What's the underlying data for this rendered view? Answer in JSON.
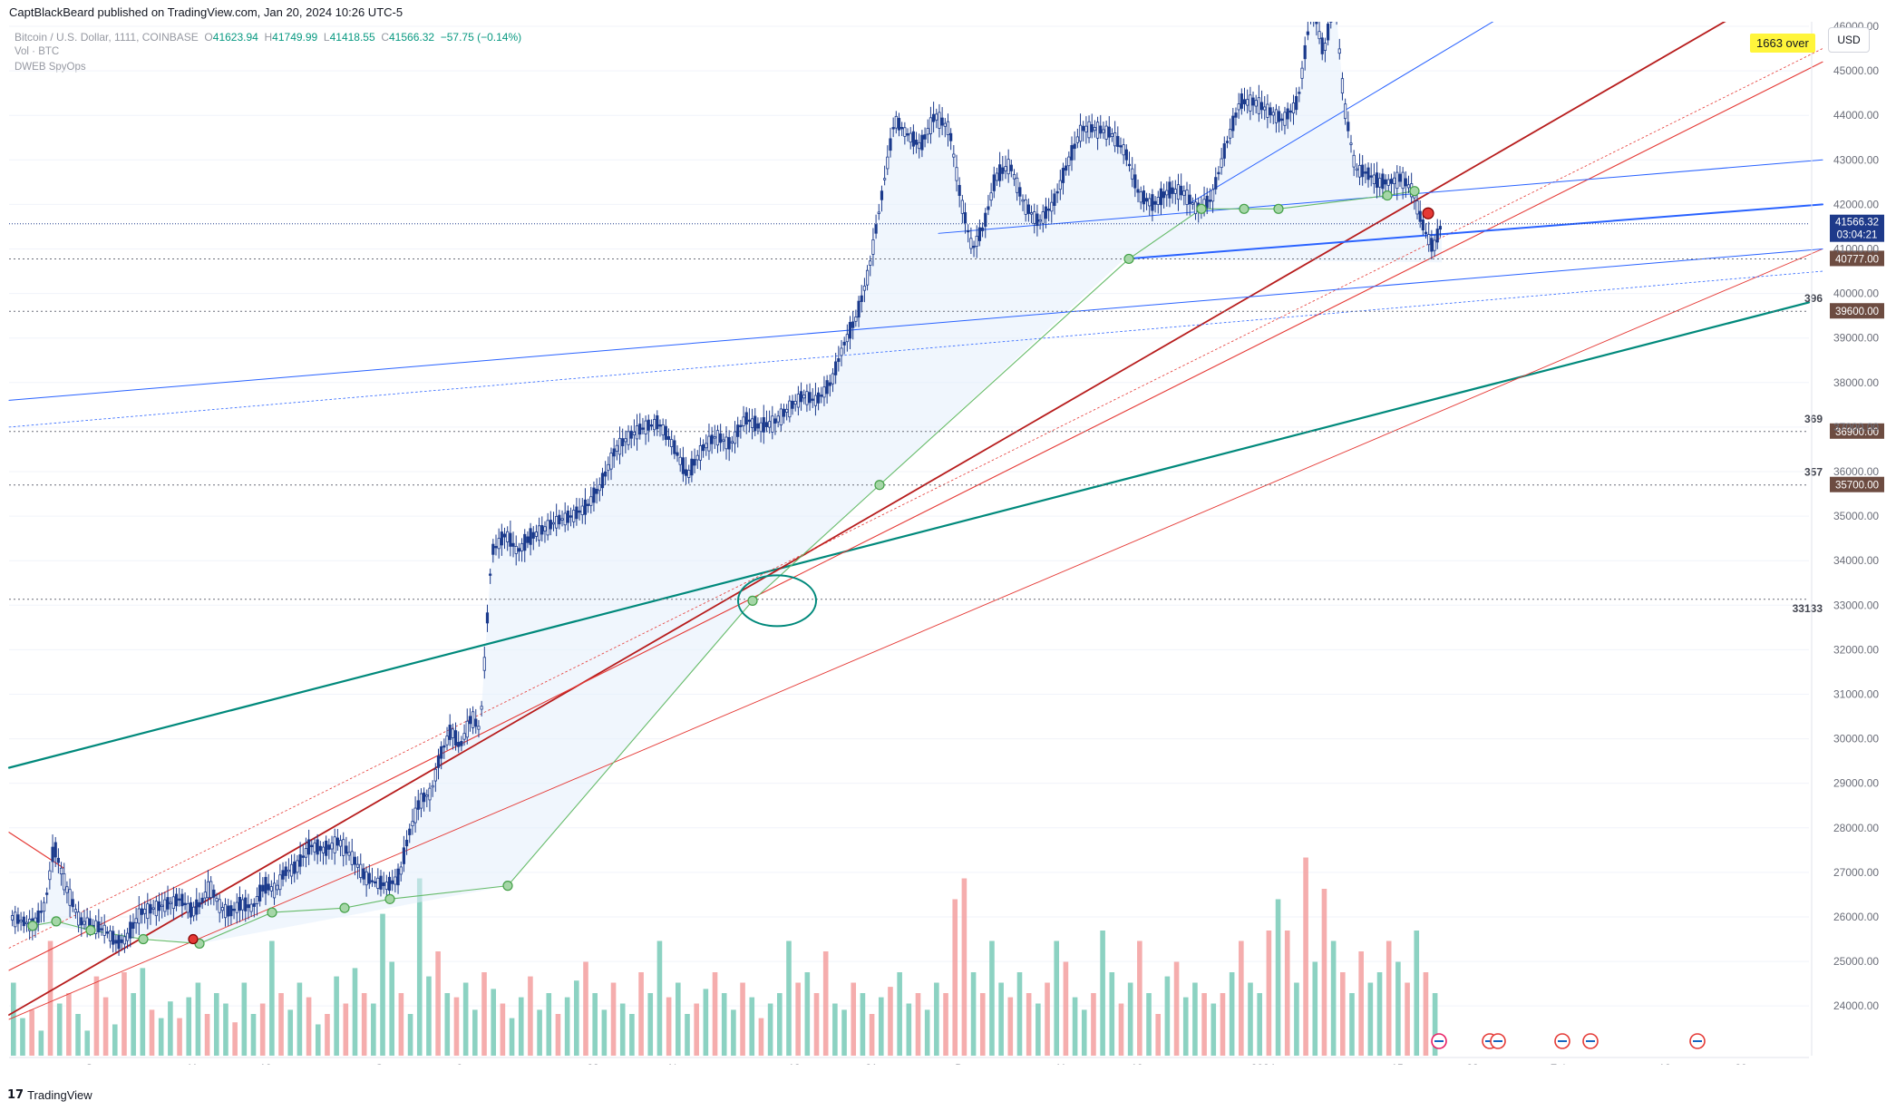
{
  "header": {
    "published": "CaptBlackBeard published on TradingView.com, Jan 20, 2024 10:26 UTC-5"
  },
  "symbol": {
    "name": "Bitcoin / U.S. Dollar, 1111, COINBASE",
    "open_label": "O",
    "open": "41623.94",
    "high_label": "H",
    "high": "41749.99",
    "low_label": "L",
    "low": "41418.55",
    "close_label": "C",
    "close": "41566.32",
    "change": "−57.75 (−0.14%)"
  },
  "indicators": {
    "volume": "Vol · BTC",
    "custom": "DWEB SpyOps"
  },
  "currency": "USD",
  "badge_over": "1663 over",
  "footer": {
    "logo_glyph": "17",
    "brand": "TradingView"
  },
  "colors": {
    "up": "#26a69a",
    "down": "#ef5350",
    "bar_up": "#1b3a8c",
    "teal_line": "#00897b",
    "dark_red": "#b71c1c",
    "red": "#e53935",
    "blue": "#2962ff",
    "green": "#66bb6a",
    "price_tag": "#1e3a8a",
    "level_tag": "#6d4c41"
  },
  "chart_data": {
    "type": "line",
    "price_axis": {
      "ticks": [
        24000,
        25000,
        26000,
        27000,
        28000,
        29000,
        30000,
        31000,
        32000,
        33000,
        34000,
        35000,
        36000,
        37000,
        38000,
        39000,
        40000,
        41000,
        42000,
        43000,
        44000,
        45000,
        46000
      ],
      "tick_labels": [
        "24000.00",
        "25000.00",
        "26000.00",
        "27000.00",
        "28000.00",
        "29000.00",
        "30000.00",
        "31000.00",
        "32000.00",
        "33000.00",
        "34000.00",
        "35000.00",
        "36000.00",
        "37000.00",
        "38000.00",
        "39000.00",
        "40000.00",
        "41000.00",
        "42000.00",
        "43000.00",
        "44000.00",
        "45000.00",
        "46000.00"
      ],
      "ylim": [
        23500,
        46900
      ]
    },
    "time_axis": {
      "labels": [
        "Sep",
        "11",
        "19",
        "Oct",
        "9",
        "23",
        "Nov",
        "13",
        "21",
        "Dec",
        "11",
        "19",
        "2024",
        "15",
        "23",
        "Feb",
        "12",
        "20"
      ]
    },
    "current_price": {
      "value": 41566.32,
      "label": "41566.32",
      "countdown": "03:04:21"
    },
    "levels": [
      {
        "value": 40777,
        "label": "40777.00",
        "note": ""
      },
      {
        "value": 39600,
        "label": "39600.00",
        "note": "396"
      },
      {
        "value": 36900,
        "label": "36900.00",
        "note": "369"
      },
      {
        "value": 35700,
        "label": "35700.00",
        "note": "357"
      },
      {
        "value": 33133,
        "label": "",
        "note": "33133"
      }
    ],
    "price_path": [
      [
        0,
        26000
      ],
      [
        8,
        25900
      ],
      [
        16,
        25800
      ],
      [
        24,
        26300
      ],
      [
        30,
        27600
      ],
      [
        38,
        26700
      ],
      [
        48,
        25900
      ],
      [
        58,
        25800
      ],
      [
        66,
        25700
      ],
      [
        74,
        25400
      ],
      [
        80,
        25500
      ],
      [
        90,
        26100
      ],
      [
        100,
        26200
      ],
      [
        110,
        26300
      ],
      [
        118,
        26400
      ],
      [
        126,
        26100
      ],
      [
        132,
        26300
      ],
      [
        138,
        26700
      ],
      [
        146,
        26200
      ],
      [
        152,
        26100
      ],
      [
        160,
        26300
      ],
      [
        168,
        26200
      ],
      [
        176,
        26700
      ],
      [
        184,
        26600
      ],
      [
        190,
        27000
      ],
      [
        198,
        27100
      ],
      [
        208,
        27600
      ],
      [
        218,
        27500
      ],
      [
        228,
        27700
      ],
      [
        238,
        27300
      ],
      [
        246,
        26900
      ],
      [
        252,
        26800
      ],
      [
        262,
        26700
      ],
      [
        270,
        26900
      ],
      [
        276,
        27800
      ],
      [
        284,
        28600
      ],
      [
        292,
        28800
      ],
      [
        298,
        29600
      ],
      [
        306,
        30200
      ],
      [
        312,
        29800
      ],
      [
        320,
        30500
      ],
      [
        326,
        30200
      ],
      [
        334,
        34200
      ],
      [
        344,
        34600
      ],
      [
        352,
        34200
      ],
      [
        360,
        34500
      ],
      [
        370,
        34700
      ],
      [
        380,
        34900
      ],
      [
        390,
        35000
      ],
      [
        400,
        35200
      ],
      [
        410,
        35700
      ],
      [
        420,
        36500
      ],
      [
        430,
        36800
      ],
      [
        440,
        37000
      ],
      [
        450,
        37100
      ],
      [
        460,
        36600
      ],
      [
        470,
        35900
      ],
      [
        480,
        36500
      ],
      [
        490,
        36800
      ],
      [
        500,
        36600
      ],
      [
        510,
        37200
      ],
      [
        520,
        37000
      ],
      [
        530,
        37100
      ],
      [
        540,
        37400
      ],
      [
        550,
        37700
      ],
      [
        560,
        37600
      ],
      [
        570,
        38000
      ],
      [
        578,
        38800
      ],
      [
        588,
        39500
      ],
      [
        596,
        40500
      ],
      [
        604,
        42000
      ],
      [
        614,
        43900
      ],
      [
        622,
        43600
      ],
      [
        632,
        43300
      ],
      [
        642,
        44000
      ],
      [
        652,
        43700
      ],
      [
        660,
        42100
      ],
      [
        668,
        41000
      ],
      [
        676,
        41500
      ],
      [
        684,
        42600
      ],
      [
        694,
        42900
      ],
      [
        704,
        42000
      ],
      [
        714,
        41600
      ],
      [
        724,
        42000
      ],
      [
        734,
        42900
      ],
      [
        744,
        43700
      ],
      [
        754,
        43700
      ],
      [
        764,
        43600
      ],
      [
        774,
        43200
      ],
      [
        784,
        42200
      ],
      [
        794,
        42000
      ],
      [
        804,
        42300
      ],
      [
        814,
        42300
      ],
      [
        824,
        41900
      ],
      [
        834,
        42100
      ],
      [
        844,
        43300
      ],
      [
        854,
        44300
      ],
      [
        864,
        44300
      ],
      [
        874,
        44100
      ],
      [
        884,
        43900
      ],
      [
        894,
        44300
      ],
      [
        904,
        46500
      ],
      [
        912,
        45400
      ],
      [
        920,
        46600
      ],
      [
        926,
        44300
      ],
      [
        934,
        42800
      ],
      [
        942,
        42700
      ],
      [
        950,
        42500
      ],
      [
        958,
        42500
      ],
      [
        966,
        42600
      ],
      [
        974,
        42300
      ],
      [
        980,
        41600
      ],
      [
        988,
        41000
      ],
      [
        994,
        41566
      ]
    ],
    "volume": {
      "note": "relative bar heights 0-1, color up/down",
      "bars": [
        [
          0.35,
          "u"
        ],
        [
          0.18,
          "u"
        ],
        [
          0.22,
          "d"
        ],
        [
          0.12,
          "u"
        ],
        [
          0.55,
          "d"
        ],
        [
          0.25,
          "u"
        ],
        [
          0.3,
          "d"
        ],
        [
          0.2,
          "u"
        ],
        [
          0.12,
          "u"
        ],
        [
          0.38,
          "d"
        ],
        [
          0.28,
          "d"
        ],
        [
          0.15,
          "u"
        ],
        [
          0.4,
          "d"
        ],
        [
          0.3,
          "u"
        ],
        [
          0.42,
          "u"
        ],
        [
          0.22,
          "d"
        ],
        [
          0.18,
          "u"
        ],
        [
          0.26,
          "u"
        ],
        [
          0.18,
          "d"
        ],
        [
          0.28,
          "u"
        ],
        [
          0.35,
          "u"
        ],
        [
          0.2,
          "d"
        ],
        [
          0.3,
          "u"
        ],
        [
          0.25,
          "u"
        ],
        [
          0.16,
          "d"
        ],
        [
          0.35,
          "u"
        ],
        [
          0.2,
          "u"
        ],
        [
          0.25,
          "d"
        ],
        [
          0.55,
          "u"
        ],
        [
          0.3,
          "d"
        ],
        [
          0.22,
          "u"
        ],
        [
          0.35,
          "u"
        ],
        [
          0.28,
          "d"
        ],
        [
          0.15,
          "u"
        ],
        [
          0.2,
          "d"
        ],
        [
          0.38,
          "u"
        ],
        [
          0.25,
          "d"
        ],
        [
          0.42,
          "u"
        ],
        [
          0.3,
          "d"
        ],
        [
          0.25,
          "u"
        ],
        [
          0.68,
          "u"
        ],
        [
          0.45,
          "u"
        ],
        [
          0.3,
          "d"
        ],
        [
          0.2,
          "u"
        ],
        [
          0.85,
          "u"
        ],
        [
          0.38,
          "u"
        ],
        [
          0.5,
          "d"
        ],
        [
          0.3,
          "u"
        ],
        [
          0.28,
          "d"
        ],
        [
          0.35,
          "u"
        ],
        [
          0.22,
          "u"
        ],
        [
          0.4,
          "d"
        ],
        [
          0.32,
          "u"
        ],
        [
          0.25,
          "d"
        ],
        [
          0.18,
          "u"
        ],
        [
          0.28,
          "u"
        ],
        [
          0.38,
          "d"
        ],
        [
          0.22,
          "u"
        ],
        [
          0.3,
          "u"
        ],
        [
          0.2,
          "d"
        ],
        [
          0.28,
          "u"
        ],
        [
          0.36,
          "u"
        ],
        [
          0.45,
          "d"
        ],
        [
          0.3,
          "u"
        ],
        [
          0.22,
          "u"
        ],
        [
          0.35,
          "d"
        ],
        [
          0.25,
          "u"
        ],
        [
          0.2,
          "u"
        ],
        [
          0.4,
          "d"
        ],
        [
          0.3,
          "u"
        ],
        [
          0.55,
          "u"
        ],
        [
          0.28,
          "d"
        ],
        [
          0.35,
          "u"
        ],
        [
          0.2,
          "u"
        ],
        [
          0.25,
          "d"
        ],
        [
          0.32,
          "u"
        ],
        [
          0.4,
          "d"
        ],
        [
          0.3,
          "u"
        ],
        [
          0.22,
          "u"
        ],
        [
          0.35,
          "d"
        ],
        [
          0.28,
          "u"
        ],
        [
          0.18,
          "d"
        ],
        [
          0.25,
          "u"
        ],
        [
          0.3,
          "u"
        ],
        [
          0.55,
          "u"
        ],
        [
          0.35,
          "d"
        ],
        [
          0.4,
          "u"
        ],
        [
          0.3,
          "d"
        ],
        [
          0.5,
          "d"
        ],
        [
          0.25,
          "u"
        ],
        [
          0.22,
          "u"
        ],
        [
          0.35,
          "d"
        ],
        [
          0.3,
          "u"
        ],
        [
          0.2,
          "d"
        ],
        [
          0.28,
          "u"
        ],
        [
          0.33,
          "d"
        ],
        [
          0.4,
          "u"
        ],
        [
          0.25,
          "u"
        ],
        [
          0.3,
          "d"
        ],
        [
          0.22,
          "u"
        ],
        [
          0.35,
          "u"
        ],
        [
          0.3,
          "d"
        ],
        [
          0.75,
          "d"
        ],
        [
          0.85,
          "d"
        ],
        [
          0.4,
          "u"
        ],
        [
          0.3,
          "d"
        ],
        [
          0.55,
          "u"
        ],
        [
          0.35,
          "u"
        ],
        [
          0.28,
          "d"
        ],
        [
          0.4,
          "u"
        ],
        [
          0.3,
          "d"
        ],
        [
          0.25,
          "u"
        ],
        [
          0.35,
          "d"
        ],
        [
          0.55,
          "u"
        ],
        [
          0.45,
          "d"
        ],
        [
          0.28,
          "u"
        ],
        [
          0.22,
          "u"
        ],
        [
          0.3,
          "d"
        ],
        [
          0.6,
          "u"
        ],
        [
          0.4,
          "u"
        ],
        [
          0.25,
          "d"
        ],
        [
          0.35,
          "u"
        ],
        [
          0.55,
          "d"
        ],
        [
          0.3,
          "u"
        ],
        [
          0.2,
          "d"
        ],
        [
          0.38,
          "u"
        ],
        [
          0.45,
          "d"
        ],
        [
          0.28,
          "u"
        ],
        [
          0.35,
          "u"
        ],
        [
          0.3,
          "d"
        ],
        [
          0.25,
          "u"
        ],
        [
          0.3,
          "d"
        ],
        [
          0.4,
          "u"
        ],
        [
          0.55,
          "d"
        ],
        [
          0.35,
          "u"
        ],
        [
          0.3,
          "u"
        ],
        [
          0.6,
          "d"
        ],
        [
          0.75,
          "u"
        ],
        [
          0.6,
          "d"
        ],
        [
          0.35,
          "u"
        ],
        [
          0.95,
          "d"
        ],
        [
          0.45,
          "u"
        ],
        [
          0.8,
          "d"
        ],
        [
          0.55,
          "u"
        ],
        [
          0.4,
          "d"
        ],
        [
          0.3,
          "u"
        ],
        [
          0.5,
          "d"
        ],
        [
          0.35,
          "u"
        ],
        [
          0.4,
          "u"
        ],
        [
          0.55,
          "d"
        ],
        [
          0.45,
          "u"
        ],
        [
          0.35,
          "d"
        ],
        [
          0.6,
          "u"
        ],
        [
          0.4,
          "d"
        ],
        [
          0.3,
          "u"
        ]
      ]
    }
  }
}
